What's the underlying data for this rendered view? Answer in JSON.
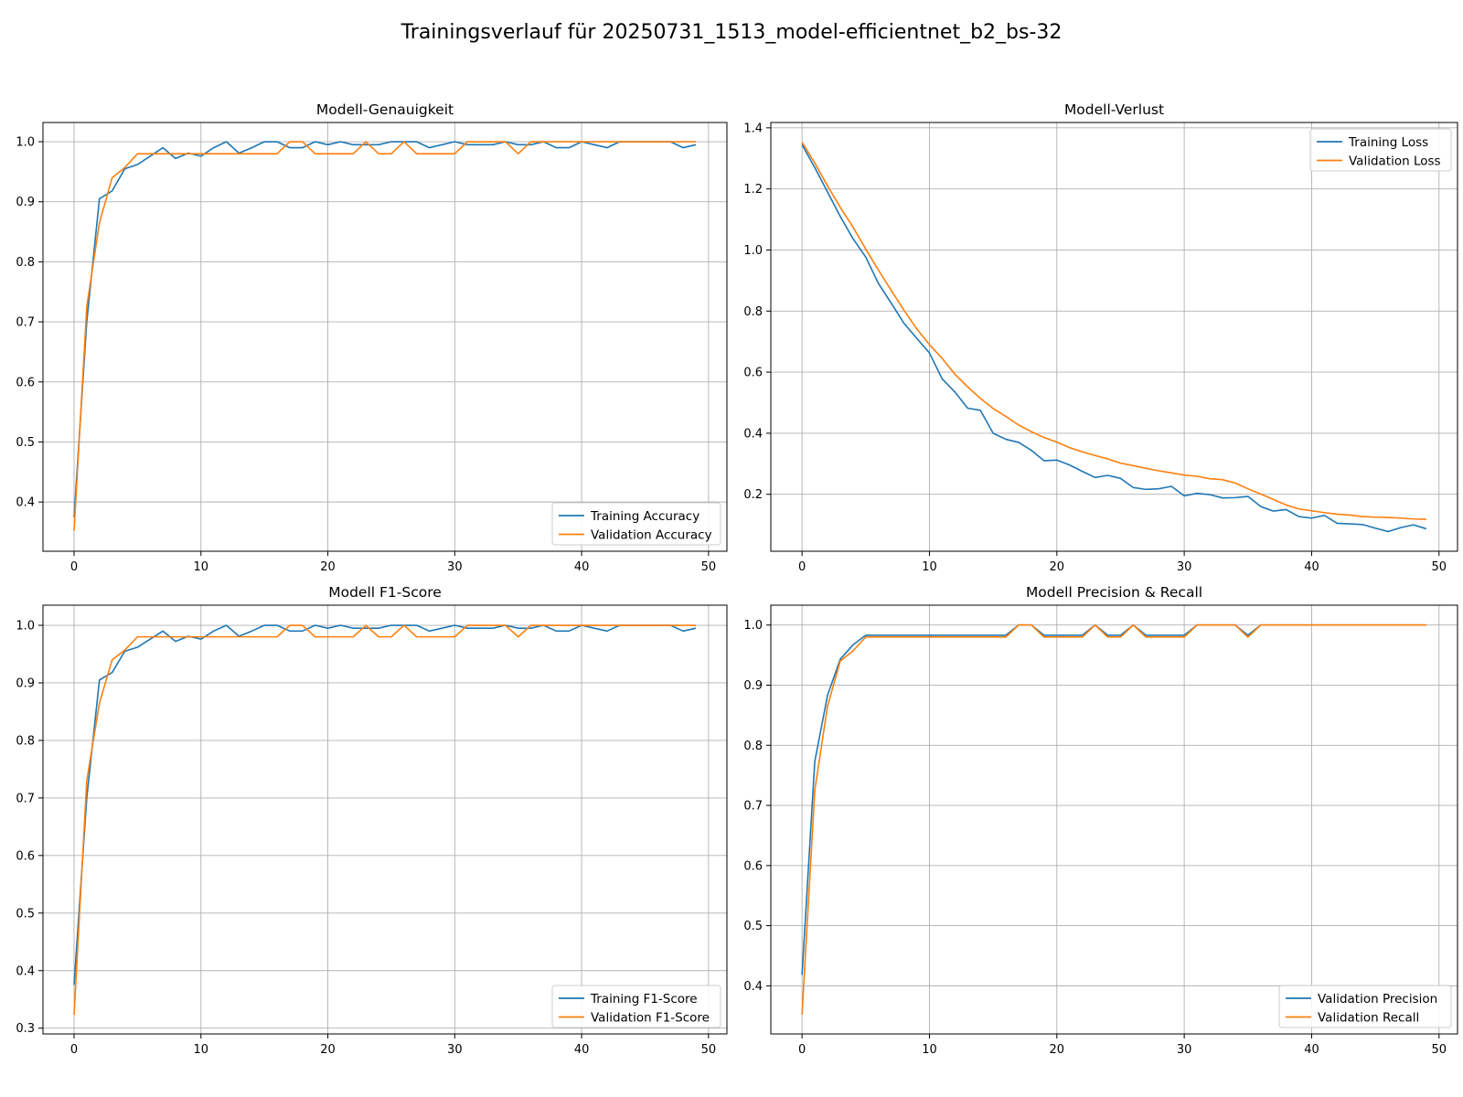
{
  "figure": {
    "title": "Trainingsverlauf für 20250731_1513_model-efficientnet_b2_bs-32",
    "colors": {
      "blue": "#1f77b4",
      "orange": "#ff7f0e",
      "grid": "#b0b0b0"
    }
  },
  "chart_data": [
    {
      "type": "line",
      "title": "Modell-Genauigkeit",
      "xlabel": "",
      "ylabel": "",
      "xlim": [
        -2.45,
        51.45
      ],
      "ylim": [
        0.318,
        1.032
      ],
      "xticks": [
        0,
        10,
        20,
        30,
        40,
        50
      ],
      "yticks": [
        0.4,
        0.5,
        0.6,
        0.7,
        0.8,
        0.9,
        1.0
      ],
      "grid": true,
      "legend_position": "lower right",
      "x": [
        0,
        1,
        2,
        3,
        4,
        5,
        6,
        7,
        8,
        9,
        10,
        11,
        12,
        13,
        14,
        15,
        16,
        17,
        18,
        19,
        20,
        21,
        22,
        23,
        24,
        25,
        26,
        27,
        28,
        29,
        30,
        31,
        32,
        33,
        34,
        35,
        36,
        37,
        38,
        39,
        40,
        41,
        42,
        43,
        44,
        45,
        46,
        47,
        48,
        49
      ],
      "series": [
        {
          "name": "Training Accuracy",
          "color": "#1f77b4",
          "values": [
            0.375,
            0.7,
            0.905,
            0.918,
            0.955,
            0.962,
            0.976,
            0.99,
            0.972,
            0.981,
            0.976,
            0.99,
            1.0,
            0.981,
            0.99,
            1.0,
            1.0,
            0.99,
            0.99,
            1.0,
            0.995,
            1.0,
            0.995,
            0.995,
            0.995,
            1.0,
            1.0,
            1.0,
            0.99,
            0.995,
            1.0,
            0.995,
            0.995,
            0.995,
            1.0,
            0.995,
            0.995,
            1.0,
            0.99,
            0.99,
            1.0,
            0.995,
            0.99,
            1.0,
            1.0,
            1.0,
            1.0,
            1.0,
            0.99,
            0.995
          ]
        },
        {
          "name": "Validation Accuracy",
          "color": "#ff7f0e",
          "values": [
            0.352,
            0.725,
            0.865,
            0.94,
            0.957,
            0.98,
            0.98,
            0.98,
            0.98,
            0.98,
            0.98,
            0.98,
            0.98,
            0.98,
            0.98,
            0.98,
            0.98,
            1.0,
            1.0,
            0.98,
            0.98,
            0.98,
            0.98,
            1.0,
            0.98,
            0.98,
            1.0,
            0.98,
            0.98,
            0.98,
            0.98,
            1.0,
            1.0,
            1.0,
            1.0,
            0.98,
            1.0,
            1.0,
            1.0,
            1.0,
            1.0,
            1.0,
            1.0,
            1.0,
            1.0,
            1.0,
            1.0,
            1.0,
            1.0,
            1.0
          ]
        }
      ]
    },
    {
      "type": "line",
      "title": "Modell-Verlust",
      "xlabel": "",
      "ylabel": "",
      "xlim": [
        -2.45,
        51.45
      ],
      "ylim": [
        0.0135,
        1.4175
      ],
      "xticks": [
        0,
        10,
        20,
        30,
        40,
        50
      ],
      "yticks": [
        0.2,
        0.4,
        0.6,
        0.8,
        1.0,
        1.2,
        1.4
      ],
      "grid": true,
      "legend_position": "upper right",
      "x": [
        0,
        1,
        2,
        3,
        4,
        5,
        6,
        7,
        8,
        9,
        10,
        11,
        12,
        13,
        14,
        15,
        16,
        17,
        18,
        19,
        20,
        21,
        22,
        23,
        24,
        25,
        26,
        27,
        28,
        29,
        30,
        31,
        32,
        33,
        34,
        35,
        36,
        37,
        38,
        39,
        40,
        41,
        42,
        43,
        44,
        45,
        46,
        47,
        48,
        49
      ],
      "series": [
        {
          "name": "Training Loss",
          "color": "#1f77b4",
          "values": [
            1.345,
            1.27,
            1.19,
            1.11,
            1.037,
            0.977,
            0.89,
            0.826,
            0.76,
            0.711,
            0.663,
            0.578,
            0.535,
            0.482,
            0.475,
            0.4,
            0.38,
            0.37,
            0.344,
            0.31,
            0.312,
            0.296,
            0.275,
            0.255,
            0.262,
            0.252,
            0.222,
            0.216,
            0.218,
            0.226,
            0.195,
            0.203,
            0.199,
            0.188,
            0.189,
            0.193,
            0.16,
            0.145,
            0.15,
            0.127,
            0.122,
            0.131,
            0.105,
            0.103,
            0.101,
            0.089,
            0.078,
            0.091,
            0.1,
            0.087
          ]
        },
        {
          "name": "Validation Loss",
          "color": "#ff7f0e",
          "values": [
            1.353,
            1.285,
            1.21,
            1.14,
            1.075,
            1.003,
            0.934,
            0.868,
            0.803,
            0.742,
            0.69,
            0.645,
            0.593,
            0.552,
            0.514,
            0.481,
            0.455,
            0.427,
            0.405,
            0.386,
            0.371,
            0.353,
            0.339,
            0.327,
            0.316,
            0.302,
            0.294,
            0.285,
            0.277,
            0.27,
            0.263,
            0.259,
            0.251,
            0.248,
            0.237,
            0.218,
            0.201,
            0.183,
            0.165,
            0.152,
            0.146,
            0.14,
            0.135,
            0.132,
            0.127,
            0.125,
            0.124,
            0.122,
            0.119,
            0.118
          ]
        }
      ]
    },
    {
      "type": "line",
      "title": "Modell F1-Score",
      "xlabel": "",
      "ylabel": "",
      "xlim": [
        -2.45,
        51.45
      ],
      "ylim": [
        0.29,
        1.035
      ],
      "xticks": [
        0,
        10,
        20,
        30,
        40,
        50
      ],
      "yticks": [
        0.3,
        0.4,
        0.5,
        0.6,
        0.7,
        0.8,
        0.9,
        1.0
      ],
      "grid": true,
      "legend_position": "lower right",
      "x": [
        0,
        1,
        2,
        3,
        4,
        5,
        6,
        7,
        8,
        9,
        10,
        11,
        12,
        13,
        14,
        15,
        16,
        17,
        18,
        19,
        20,
        21,
        22,
        23,
        24,
        25,
        26,
        27,
        28,
        29,
        30,
        31,
        32,
        33,
        34,
        35,
        36,
        37,
        38,
        39,
        40,
        41,
        42,
        43,
        44,
        45,
        46,
        47,
        48,
        49
      ],
      "series": [
        {
          "name": "Training F1-Score",
          "color": "#1f77b4",
          "values": [
            0.375,
            0.7,
            0.905,
            0.918,
            0.955,
            0.962,
            0.976,
            0.99,
            0.972,
            0.981,
            0.976,
            0.99,
            1.0,
            0.981,
            0.99,
            1.0,
            1.0,
            0.99,
            0.99,
            1.0,
            0.995,
            1.0,
            0.995,
            0.995,
            0.995,
            1.0,
            1.0,
            1.0,
            0.99,
            0.995,
            1.0,
            0.995,
            0.995,
            0.995,
            1.0,
            0.995,
            0.995,
            1.0,
            0.99,
            0.99,
            1.0,
            0.995,
            0.99,
            1.0,
            1.0,
            1.0,
            1.0,
            1.0,
            0.99,
            0.995
          ]
        },
        {
          "name": "Validation F1-Score",
          "color": "#ff7f0e",
          "values": [
            0.323,
            0.73,
            0.865,
            0.94,
            0.957,
            0.98,
            0.98,
            0.98,
            0.98,
            0.98,
            0.98,
            0.98,
            0.98,
            0.98,
            0.98,
            0.98,
            0.98,
            1.0,
            1.0,
            0.98,
            0.98,
            0.98,
            0.98,
            1.0,
            0.98,
            0.98,
            1.0,
            0.98,
            0.98,
            0.98,
            0.98,
            1.0,
            1.0,
            1.0,
            1.0,
            0.98,
            1.0,
            1.0,
            1.0,
            1.0,
            1.0,
            1.0,
            1.0,
            1.0,
            1.0,
            1.0,
            1.0,
            1.0,
            1.0,
            1.0
          ]
        }
      ]
    },
    {
      "type": "line",
      "title": "Modell Precision & Recall",
      "xlabel": "",
      "ylabel": "",
      "xlim": [
        -2.45,
        51.45
      ],
      "ylim": [
        0.32,
        1.033
      ],
      "xticks": [
        0,
        10,
        20,
        30,
        40,
        50
      ],
      "yticks": [
        0.4,
        0.5,
        0.6,
        0.7,
        0.8,
        0.9,
        1.0
      ],
      "grid": true,
      "legend_position": "lower right",
      "x": [
        0,
        1,
        2,
        3,
        4,
        5,
        6,
        7,
        8,
        9,
        10,
        11,
        12,
        13,
        14,
        15,
        16,
        17,
        18,
        19,
        20,
        21,
        22,
        23,
        24,
        25,
        26,
        27,
        28,
        29,
        30,
        31,
        32,
        33,
        34,
        35,
        36,
        37,
        38,
        39,
        40,
        41,
        42,
        43,
        44,
        45,
        46,
        47,
        48,
        49
      ],
      "series": [
        {
          "name": "Validation Precision",
          "color": "#1f77b4",
          "values": [
            0.418,
            0.773,
            0.883,
            0.943,
            0.967,
            0.983,
            0.983,
            0.983,
            0.983,
            0.983,
            0.983,
            0.983,
            0.983,
            0.983,
            0.983,
            0.983,
            0.983,
            1.0,
            1.0,
            0.983,
            0.983,
            0.983,
            0.983,
            1.0,
            0.983,
            0.983,
            1.0,
            0.983,
            0.983,
            0.983,
            0.983,
            1.0,
            1.0,
            1.0,
            1.0,
            0.983,
            1.0,
            1.0,
            1.0,
            1.0,
            1.0,
            1.0,
            1.0,
            1.0,
            1.0,
            1.0,
            1.0,
            1.0,
            1.0,
            1.0
          ]
        },
        {
          "name": "Validation Recall",
          "color": "#ff7f0e",
          "values": [
            0.352,
            0.725,
            0.865,
            0.94,
            0.957,
            0.98,
            0.98,
            0.98,
            0.98,
            0.98,
            0.98,
            0.98,
            0.98,
            0.98,
            0.98,
            0.98,
            0.98,
            1.0,
            1.0,
            0.98,
            0.98,
            0.98,
            0.98,
            1.0,
            0.98,
            0.98,
            1.0,
            0.98,
            0.98,
            0.98,
            0.98,
            1.0,
            1.0,
            1.0,
            1.0,
            0.98,
            1.0,
            1.0,
            1.0,
            1.0,
            1.0,
            1.0,
            1.0,
            1.0,
            1.0,
            1.0,
            1.0,
            1.0,
            1.0,
            1.0
          ]
        }
      ]
    }
  ]
}
